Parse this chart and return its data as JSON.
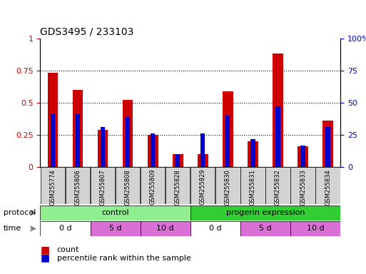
{
  "title": "GDS3495 / 233103",
  "samples": [
    "GSM255774",
    "GSM255806",
    "GSM255807",
    "GSM255808",
    "GSM255809",
    "GSM255828",
    "GSM255829",
    "GSM255830",
    "GSM255831",
    "GSM255832",
    "GSM255833",
    "GSM255834"
  ],
  "count_values": [
    0.73,
    0.6,
    0.29,
    0.52,
    0.25,
    0.1,
    0.1,
    0.59,
    0.2,
    0.88,
    0.16,
    0.36
  ],
  "percentile_values": [
    0.41,
    0.41,
    0.31,
    0.39,
    0.26,
    0.1,
    0.26,
    0.4,
    0.22,
    0.47,
    0.17,
    0.31
  ],
  "bar_color_red": "#CC0000",
  "bar_color_blue": "#0000CC",
  "ylim": [
    0,
    1.0
  ],
  "yticks": [
    0,
    0.25,
    0.5,
    0.75,
    1.0
  ],
  "ytick_labels_left": [
    "0",
    "0.25",
    "0.5",
    "0.75",
    "1"
  ],
  "ytick_labels_right": [
    "0",
    "25",
    "50",
    "75",
    "100%"
  ],
  "legend_count_color": "#CC0000",
  "legend_pct_color": "#0000CC",
  "tick_area_color": "#D3D3D3",
  "control_color": "#90EE90",
  "progerin_color": "#32CD32",
  "time_0d_color": "#ffffff",
  "time_5d_color": "#DA70D6",
  "time_10d_color": "#DA70D6"
}
